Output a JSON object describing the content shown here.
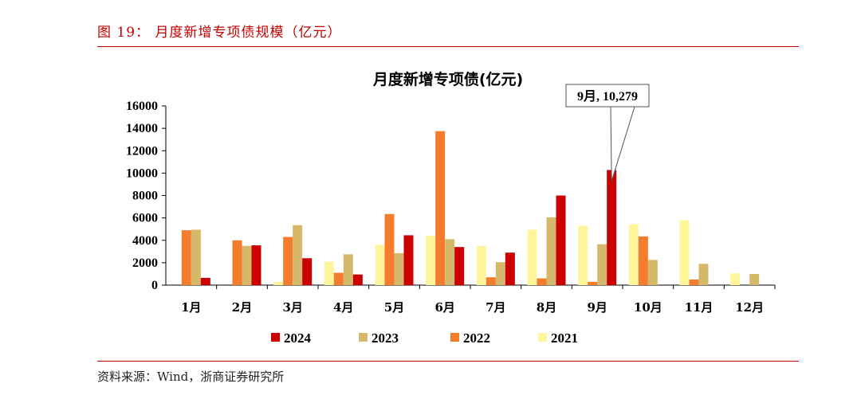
{
  "figure": {
    "label": "图 19：  月度新增专项债规模（亿元）",
    "source": "资料来源：Wind，浙商证券研究所"
  },
  "chart_data": {
    "type": "bar",
    "title": "月度新增专项债(亿元)",
    "categories": [
      "1月",
      "2月",
      "3月",
      "4月",
      "5月",
      "6月",
      "7月",
      "8月",
      "9月",
      "10月",
      "11月",
      "12月"
    ],
    "series": [
      {
        "name": "2021",
        "color": "#fff59d",
        "values": [
          0,
          0,
          300,
          2100,
          3600,
          4400,
          3500,
          4950,
          5300,
          5450,
          5800,
          1050
        ]
      },
      {
        "name": "2022",
        "color": "#f47c2c",
        "values": [
          4900,
          4000,
          4300,
          1100,
          6350,
          13750,
          700,
          600,
          300,
          4350,
          500,
          0
        ]
      },
      {
        "name": "2023",
        "color": "#d6b86a",
        "values": [
          4950,
          3500,
          5350,
          2750,
          2850,
          4100,
          2050,
          6050,
          3650,
          2250,
          1900,
          1000
        ]
      },
      {
        "name": "2024",
        "color": "#cc0000",
        "values": [
          650,
          3550,
          2400,
          950,
          4450,
          3400,
          2900,
          8000,
          10279,
          null,
          null,
          null
        ]
      }
    ],
    "legend_order": [
      "2024",
      "2023",
      "2022",
      "2021"
    ],
    "ylim": [
      0,
      16000
    ],
    "yticks": [
      "0",
      "2000",
      "4000",
      "6000",
      "8000",
      "10000",
      "12000",
      "14000",
      "16000"
    ],
    "annotation": {
      "text": "9月, 10,279",
      "category": "9月",
      "series": "2024",
      "value": 10279
    }
  }
}
